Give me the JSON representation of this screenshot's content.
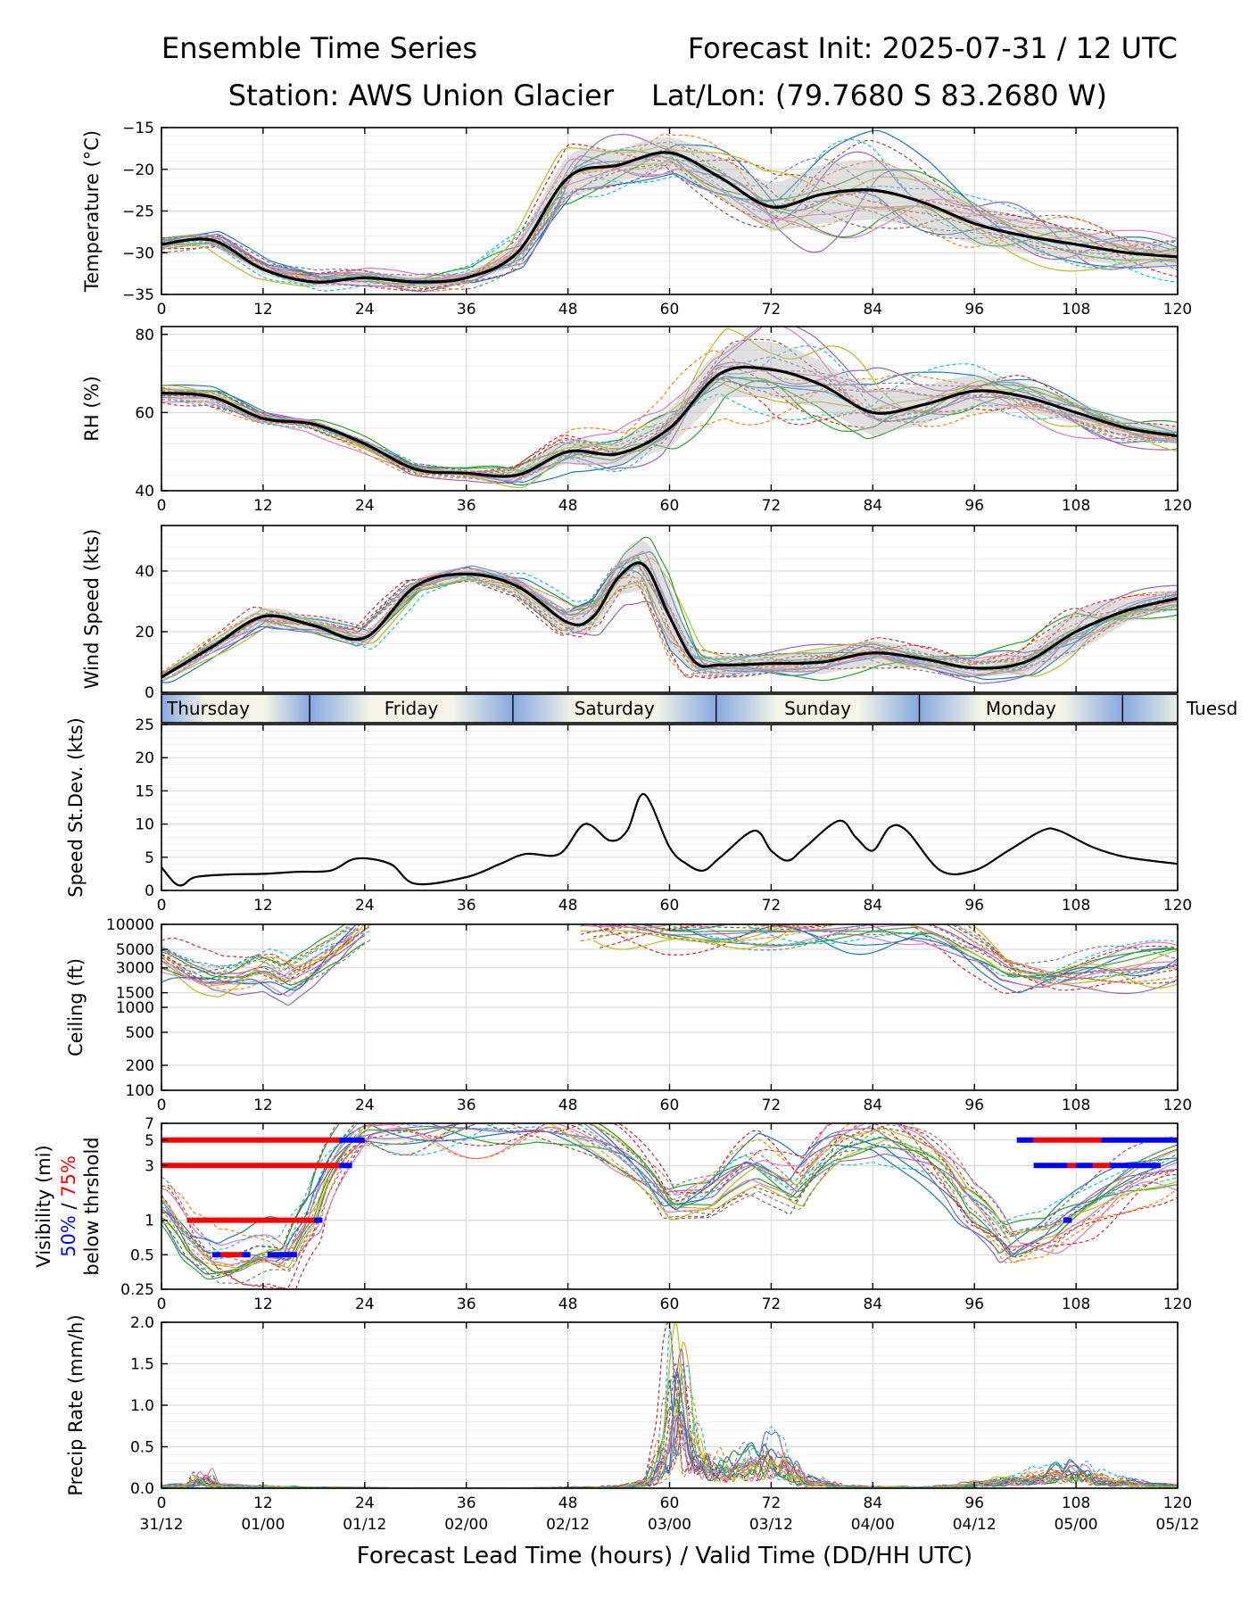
{
  "header": {
    "title_left": "Ensemble Time Series",
    "title_right": "Forecast Init: 2025-07-31 / 12 UTC",
    "station": "Station: AWS Union Glacier",
    "latlon": "Lat/Lon: (79.7680 S 83.2680 W)"
  },
  "xaxis": {
    "label": "Forecast Lead Time (hours) / Valid Time (DD/HH UTC)",
    "ticks": [
      0,
      12,
      24,
      36,
      48,
      60,
      72,
      84,
      96,
      108,
      120
    ],
    "valid_times": [
      "31/12",
      "01/00",
      "01/12",
      "02/00",
      "02/12",
      "03/00",
      "03/12",
      "04/00",
      "04/12",
      "05/00",
      "05/12"
    ]
  },
  "day_band": {
    "days": [
      {
        "name": "Thursday",
        "start": 0,
        "end": 17.5
      },
      {
        "name": "Friday",
        "start": 17.5,
        "end": 41.5
      },
      {
        "name": "Saturday",
        "start": 41.5,
        "end": 65.5
      },
      {
        "name": "Sunday",
        "start": 65.5,
        "end": 89.5
      },
      {
        "name": "Monday",
        "start": 89.5,
        "end": 113.5
      },
      {
        "name": "Tuesd",
        "start": 113.5,
        "end": 137.5
      }
    ]
  },
  "colors": {
    "ensemble": [
      "#1f77b4",
      "#ff7f0e",
      "#2ca02c",
      "#d62728",
      "#9467bd",
      "#8c564b",
      "#e377c2",
      "#7f7f7f",
      "#bcbd22",
      "#17becf"
    ],
    "mean": "#000000",
    "spread": "#bbbbbb",
    "vis_50": "#0000ff",
    "vis_75": "#ff0000"
  },
  "chart_data": [
    {
      "type": "line",
      "name": "temperature",
      "ylabel": "Temperature (°C)",
      "ylim": [
        -35,
        -15
      ],
      "yticks": [
        -35,
        -30,
        -25,
        -20,
        -15
      ],
      "ytick_labels": [
        "−35",
        "−30",
        "−25",
        "−20",
        "−15"
      ],
      "grid": true,
      "x": [
        0,
        6,
        12,
        18,
        24,
        30,
        36,
        42,
        48,
        54,
        60,
        66,
        72,
        78,
        84,
        90,
        96,
        102,
        108,
        114,
        120
      ],
      "mean": [
        -29,
        -28.5,
        -32,
        -33.5,
        -33,
        -33.5,
        -33,
        -30,
        -21,
        -19.5,
        -18,
        -21,
        -24.5,
        -23,
        -22.5,
        -24,
        -26.5,
        -28,
        -29,
        -30,
        -30.5
      ],
      "spread": [
        0.5,
        0.6,
        0.6,
        0.7,
        0.7,
        0.7,
        0.8,
        1.5,
        2.5,
        2,
        1.8,
        2.5,
        3,
        3.5,
        3.5,
        3,
        2.5,
        2,
        1.8,
        1.6,
        1.5
      ]
    },
    {
      "type": "line",
      "name": "relative_humidity",
      "ylabel": "RH (%)",
      "ylim": [
        40,
        82
      ],
      "yticks": [
        40,
        60,
        80
      ],
      "grid": true,
      "x": [
        0,
        6,
        12,
        18,
        24,
        30,
        36,
        42,
        48,
        54,
        60,
        66,
        72,
        78,
        84,
        90,
        96,
        102,
        108,
        114,
        120
      ],
      "mean": [
        65,
        64,
        58.5,
        57,
        52,
        45.5,
        44.5,
        44,
        50,
        49.5,
        56,
        70,
        71,
        67,
        60,
        62,
        65.5,
        64,
        60,
        56,
        54
      ],
      "spread": [
        1.5,
        1.5,
        1,
        1,
        1,
        1,
        1,
        2,
        3,
        3,
        5,
        6,
        7,
        6,
        6,
        5,
        4,
        3.5,
        3,
        2.5,
        2
      ]
    },
    {
      "type": "line",
      "name": "wind_speed",
      "ylabel": "Wind Speed (kts)",
      "ylim": [
        0,
        55
      ],
      "yticks": [
        0,
        20,
        40
      ],
      "grid": true,
      "x": [
        0,
        6,
        12,
        18,
        24,
        30,
        36,
        42,
        48,
        51,
        54,
        57,
        60,
        63,
        66,
        72,
        78,
        84,
        90,
        96,
        102,
        108,
        114,
        120
      ],
      "mean": [
        5,
        15,
        25,
        22,
        18,
        35,
        39,
        35,
        23,
        25,
        38,
        42,
        25,
        10,
        9,
        9.5,
        10,
        13,
        11,
        8,
        10,
        20,
        27,
        31
      ],
      "spread": [
        1.5,
        2,
        2.5,
        2.5,
        2.5,
        2,
        2,
        3,
        4,
        5,
        6,
        8,
        10,
        4,
        3,
        3,
        4,
        4,
        3,
        3,
        4,
        7,
        4,
        3
      ]
    },
    {
      "type": "line",
      "name": "speed_std_dev",
      "ylabel": "Speed St.Dev. (kts)",
      "ylim": [
        0,
        25
      ],
      "yticks": [
        0,
        5,
        10,
        15,
        20,
        25
      ],
      "grid": true,
      "x": [
        0,
        1.5,
        2.5,
        4,
        8,
        12,
        16,
        20,
        23,
        27,
        30,
        36,
        40,
        43,
        47,
        50,
        53,
        55,
        57,
        60,
        62,
        64,
        66,
        70,
        72,
        74,
        76,
        80,
        82,
        84,
        86,
        88,
        92,
        96,
        100,
        104,
        106,
        110,
        114,
        120
      ],
      "values": [
        3.5,
        1.2,
        0.8,
        2,
        2.4,
        2.5,
        2.8,
        3,
        4.8,
        4,
        1,
        2,
        4,
        5.5,
        5.5,
        10,
        7.5,
        9,
        14.5,
        6.5,
        4,
        3,
        5,
        9,
        6,
        4.5,
        6.5,
        10.5,
        8,
        6,
        9.5,
        9,
        3,
        3,
        6,
        9,
        9,
        6.5,
        5,
        4
      ]
    },
    {
      "type": "line",
      "name": "ceiling",
      "ylabel": "Ceiling (ft)",
      "scale": "log",
      "ylim": [
        100,
        10000
      ],
      "yticks": [
        100,
        200,
        500,
        1000,
        1500,
        3000,
        5000,
        10000
      ],
      "grid": true,
      "x": [
        0,
        3,
        6,
        9,
        12,
        15,
        18,
        21,
        24,
        27,
        45,
        50,
        55,
        60,
        65,
        70,
        75,
        80,
        85,
        90,
        95,
        100,
        105,
        110,
        115,
        120
      ],
      "mean": [
        4000,
        2800,
        2200,
        2400,
        3200,
        2300,
        3500,
        5500,
        9000,
        null,
        null,
        9500,
        9200,
        8000,
        8500,
        8800,
        8500,
        8800,
        9500,
        9500,
        5500,
        2800,
        2500,
        3000,
        3200,
        3500
      ]
    },
    {
      "type": "line",
      "name": "visibility",
      "ylabel": "Visibility (mi)",
      "ylabel2_parts": [
        "50%",
        " / ",
        "75%"
      ],
      "ylabel3": "below thrshold",
      "scale": "log",
      "ylim": [
        0.25,
        7
      ],
      "yticks": [
        0.25,
        0.5,
        1,
        3,
        5,
        7
      ],
      "grid": true,
      "x": [
        0,
        3,
        6,
        9,
        12,
        15,
        18,
        21,
        24,
        45,
        50,
        55,
        60,
        65,
        70,
        75,
        80,
        85,
        90,
        95,
        100,
        105,
        110,
        115,
        120
      ],
      "mean": [
        1.5,
        0.7,
        0.45,
        0.45,
        0.55,
        0.5,
        1.2,
        4,
        7,
        7,
        5,
        3,
        1.2,
        1.5,
        3,
        2,
        5,
        6,
        4,
        1.5,
        0.6,
        0.8,
        1.5,
        2.5,
        3
      ],
      "threshold_bars": [
        {
          "threshold": 5,
          "level": "75%",
          "start": 0,
          "end": 21
        },
        {
          "threshold": 5,
          "level": "50%",
          "start": 21,
          "end": 24
        },
        {
          "threshold": 3,
          "level": "75%",
          "start": 0,
          "end": 21
        },
        {
          "threshold": 3,
          "level": "50%",
          "start": 21,
          "end": 22.5
        },
        {
          "threshold": 1,
          "level": "75%",
          "start": 3,
          "end": 18
        },
        {
          "threshold": 1,
          "level": "50%",
          "start": 18,
          "end": 19
        },
        {
          "threshold": 0.5,
          "level": "50%",
          "start": 6,
          "end": 7
        },
        {
          "threshold": 0.5,
          "level": "75%",
          "start": 7,
          "end": 9.5
        },
        {
          "threshold": 0.5,
          "level": "50%",
          "start": 9.5,
          "end": 10.5
        },
        {
          "threshold": 0.5,
          "level": "50%",
          "start": 12.5,
          "end": 16
        },
        {
          "threshold": 5,
          "level": "50%",
          "start": 101,
          "end": 103
        },
        {
          "threshold": 5,
          "level": "75%",
          "start": 103,
          "end": 111
        },
        {
          "threshold": 5,
          "level": "50%",
          "start": 111,
          "end": 120
        },
        {
          "threshold": 3,
          "level": "50%",
          "start": 103,
          "end": 107
        },
        {
          "threshold": 3,
          "level": "75%",
          "start": 107,
          "end": 108
        },
        {
          "threshold": 3,
          "level": "50%",
          "start": 108,
          "end": 110
        },
        {
          "threshold": 3,
          "level": "75%",
          "start": 110,
          "end": 112
        },
        {
          "threshold": 3,
          "level": "50%",
          "start": 112,
          "end": 118
        },
        {
          "threshold": 1,
          "level": "50%",
          "start": 106.5,
          "end": 107.5
        }
      ]
    },
    {
      "type": "line",
      "name": "precip_rate",
      "ylabel": "Precip Rate (mm/h)",
      "ylim": [
        0,
        2
      ],
      "yticks": [
        0,
        0.5,
        1,
        1.5,
        2
      ],
      "ytick_labels": [
        "0.0",
        "0.5",
        "1.0",
        "1.5",
        "2.0"
      ],
      "grid": true,
      "x": [
        0,
        4,
        5,
        6,
        10,
        20,
        30,
        40,
        50,
        55,
        58,
        60,
        61,
        62,
        63,
        64,
        66,
        70,
        72,
        76,
        80,
        90,
        96,
        100,
        105,
        108,
        112,
        120
      ],
      "values": [
        0.02,
        0.05,
        0.15,
        0.05,
        0.02,
        0.01,
        0,
        0,
        0.01,
        0.02,
        0.1,
        0.6,
        1.55,
        0.8,
        0.3,
        0.4,
        0.2,
        0.3,
        0.4,
        0.1,
        0.02,
        0.01,
        0.05,
        0.1,
        0.15,
        0.2,
        0.08,
        0.02
      ]
    }
  ]
}
